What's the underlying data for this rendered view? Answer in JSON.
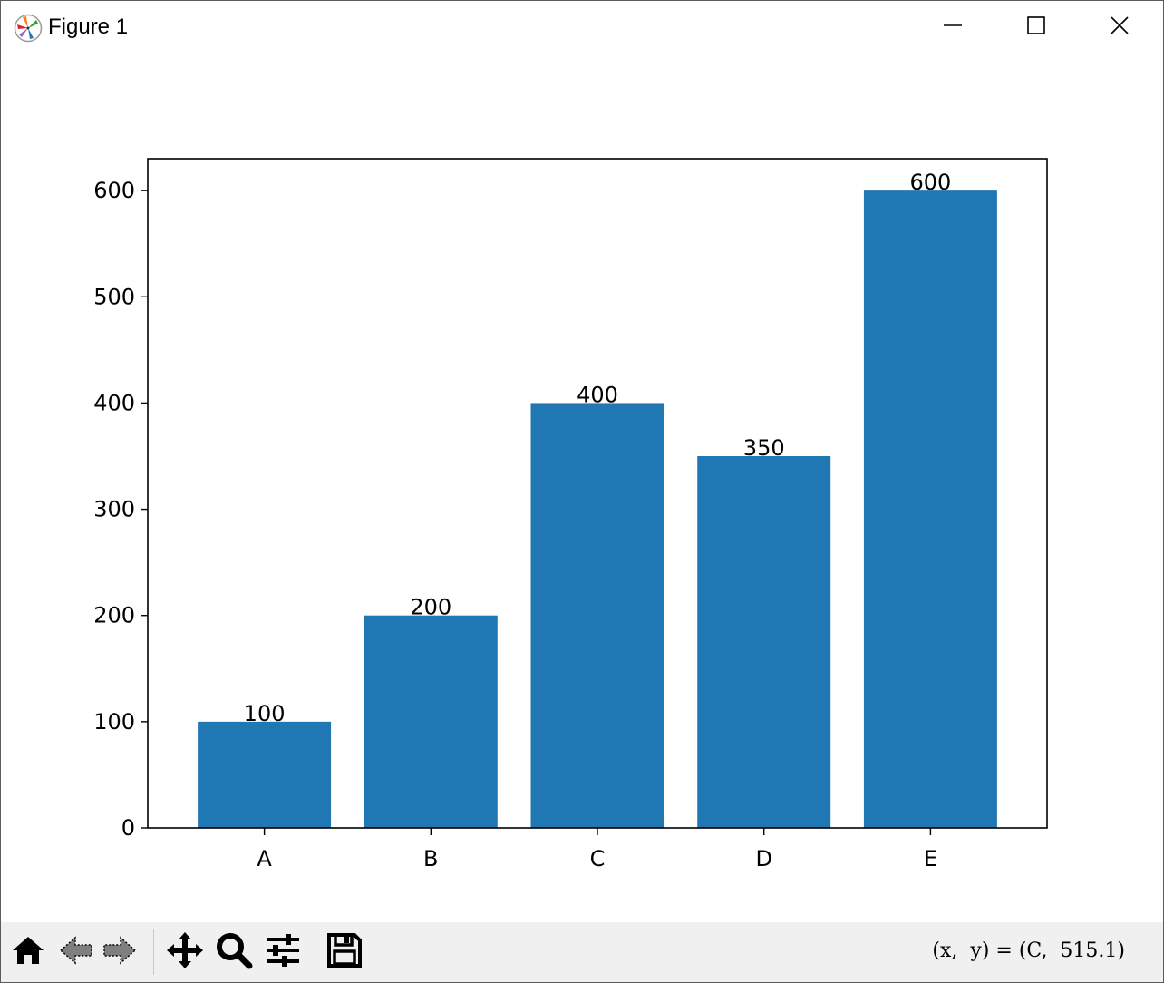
{
  "window": {
    "title": "Figure 1",
    "controls": {
      "minimize": "minimize",
      "maximize": "maximize",
      "close": "close"
    }
  },
  "toolbar": {
    "tools": [
      "home-icon",
      "back-icon",
      "forward-icon",
      "pan-icon",
      "zoom-icon",
      "configure-subplots-icon",
      "save-icon"
    ],
    "coordinates": "(x,  y) = (C,  515.1)"
  },
  "chart_data": {
    "type": "bar",
    "categories": [
      "A",
      "B",
      "C",
      "D",
      "E"
    ],
    "values": [
      100,
      200,
      400,
      350,
      600
    ],
    "data_labels": [
      "100",
      "200",
      "400",
      "350",
      "600"
    ],
    "title": "",
    "xlabel": "",
    "ylabel": "",
    "ylim": [
      0,
      630
    ],
    "yticks": [
      0,
      100,
      200,
      300,
      400,
      500,
      600
    ],
    "grid": false,
    "legend": "none",
    "bar_color": "#1f77b4"
  }
}
